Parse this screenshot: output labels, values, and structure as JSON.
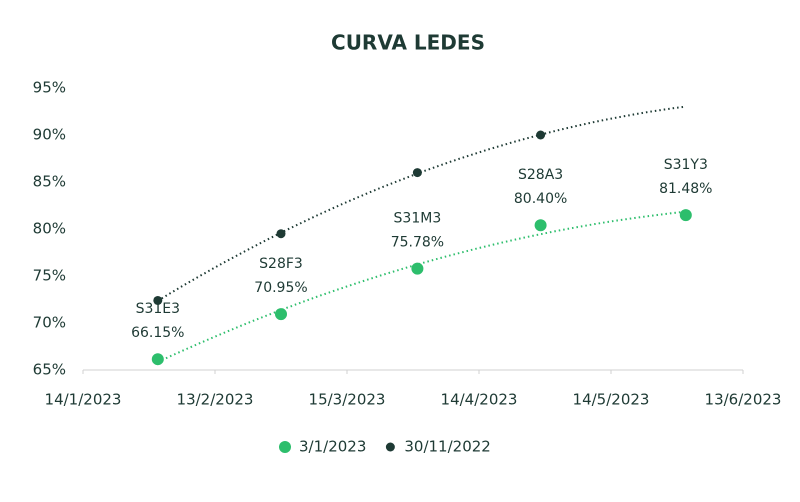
{
  "chart_data": {
    "type": "scatter",
    "title": "CURVA LEDES",
    "xlim": [
      "14/1/2023",
      "13/6/2023"
    ],
    "xticks": [
      "14/1/2023",
      "13/2/2023",
      "15/3/2023",
      "14/4/2023",
      "14/5/2023",
      "13/6/2023"
    ],
    "ylim": [
      65,
      95
    ],
    "yticks": [
      {
        "value": 65,
        "label": "65%"
      },
      {
        "value": 70,
        "label": "70%"
      },
      {
        "value": 75,
        "label": "75%"
      },
      {
        "value": 80,
        "label": "80%"
      },
      {
        "value": 85,
        "label": "85%"
      },
      {
        "value": 90,
        "label": "90%"
      },
      {
        "value": 95,
        "label": "95%"
      }
    ],
    "trendline": true,
    "legend": "bottom",
    "series": [
      {
        "name": "3/1/2023",
        "color": "#2dbe6c",
        "x": [
          "31/1/2023",
          "28/2/2023",
          "31/3/2023",
          "28/4/2023",
          "31/5/2023"
        ],
        "values": [
          66.15,
          70.95,
          75.78,
          80.4,
          81.48
        ],
        "value_labels": [
          "66.15%",
          "70.95%",
          "75.78%",
          "80.40%",
          "81.48%"
        ],
        "labels": [
          "S31E3",
          "S28F3",
          "S31M3",
          "S28A3",
          "S31Y3"
        ]
      },
      {
        "name": "30/11/2022",
        "color": "#1e3a34",
        "x": [
          "31/1/2023",
          "28/2/2023",
          "31/3/2023",
          "28/4/2023"
        ],
        "values": [
          72.4,
          79.5,
          86.0,
          90.0
        ]
      }
    ]
  }
}
